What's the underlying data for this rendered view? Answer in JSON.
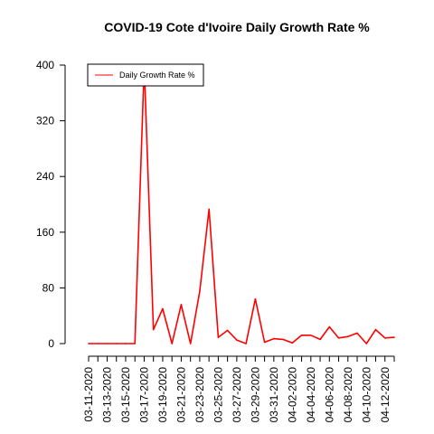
{
  "chart_data": {
    "type": "line",
    "title": "COVID-19 Cote d'Ivoire Daily Growth Rate %",
    "xlabel": "",
    "ylabel": "",
    "x": [
      "03-11-2020",
      "03-12-2020",
      "03-13-2020",
      "03-14-2020",
      "03-15-2020",
      "03-16-2020",
      "03-17-2020",
      "03-18-2020",
      "03-19-2020",
      "03-20-2020",
      "03-21-2020",
      "03-22-2020",
      "03-23-2020",
      "03-24-2020",
      "03-25-2020",
      "03-26-2020",
      "03-27-2020",
      "03-28-2020",
      "03-29-2020",
      "03-30-2020",
      "03-31-2020",
      "04-01-2020",
      "04-02-2020",
      "04-03-2020",
      "04-04-2020",
      "04-05-2020",
      "04-06-2020",
      "04-07-2020",
      "04-08-2020",
      "04-09-2020",
      "04-10-2020",
      "04-11-2020",
      "04-12-2020",
      "04-13-2020"
    ],
    "x_tick_labels": [
      "03-11-2020",
      "03-13-2020",
      "03-15-2020",
      "03-17-2020",
      "03-19-2020",
      "03-21-2020",
      "03-23-2020",
      "03-25-2020",
      "03-27-2020",
      "03-29-2020",
      "03-31-2020",
      "04-02-2020",
      "04-04-2020",
      "04-06-2020",
      "04-08-2020",
      "04-10-2020",
      "04-12-2020"
    ],
    "series": [
      {
        "name": "Daily Growth Rate %",
        "color": "#ff0000",
        "values": [
          0,
          0,
          0,
          0,
          0,
          0,
          400,
          20,
          50,
          0,
          56,
          0,
          75,
          193,
          9,
          19,
          5,
          0,
          64,
          2,
          7,
          6,
          1,
          12,
          12,
          6,
          24,
          8,
          10,
          15,
          0,
          20,
          8,
          9
        ]
      }
    ],
    "ylim": [
      0,
      400
    ],
    "y_ticks": [
      0,
      80,
      160,
      240,
      320,
      400
    ],
    "grid": false,
    "legend_position": "top-left"
  }
}
